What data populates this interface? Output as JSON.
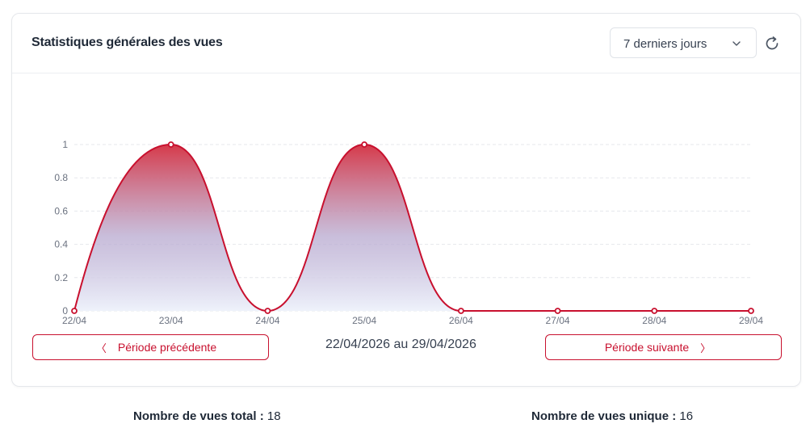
{
  "header": {
    "title": "Statistiques générales des vues",
    "period_select_value": "7 derniers jours",
    "refresh_icon": "refresh-icon"
  },
  "chart_data": {
    "type": "area",
    "categories": [
      "22/04",
      "23/04",
      "24/04",
      "25/04",
      "26/04",
      "27/04",
      "28/04",
      "29/04"
    ],
    "series": [
      {
        "values": [
          0,
          1,
          0,
          1,
          0,
          0,
          0,
          0
        ]
      }
    ],
    "y_ticks": [
      "0",
      "0.2",
      "0.4",
      "0.6",
      "0.8",
      "1"
    ],
    "ylim": [
      0,
      1
    ],
    "grid": true,
    "line_color": "#c8102e",
    "fill_top_color": "#d63a4a",
    "fill_bottom_color": "#eef2fb"
  },
  "navigation": {
    "prev_label": "Période précédente",
    "next_label": "Période suivante",
    "prev_arrow": "〈",
    "next_arrow": "〉",
    "date_range": "22/04/2026 au 29/04/2026"
  },
  "stats": {
    "total_label": "Nombre de vues total :",
    "total_value": "18",
    "unique_label": "Nombre de vues unique :",
    "unique_value": "16"
  }
}
